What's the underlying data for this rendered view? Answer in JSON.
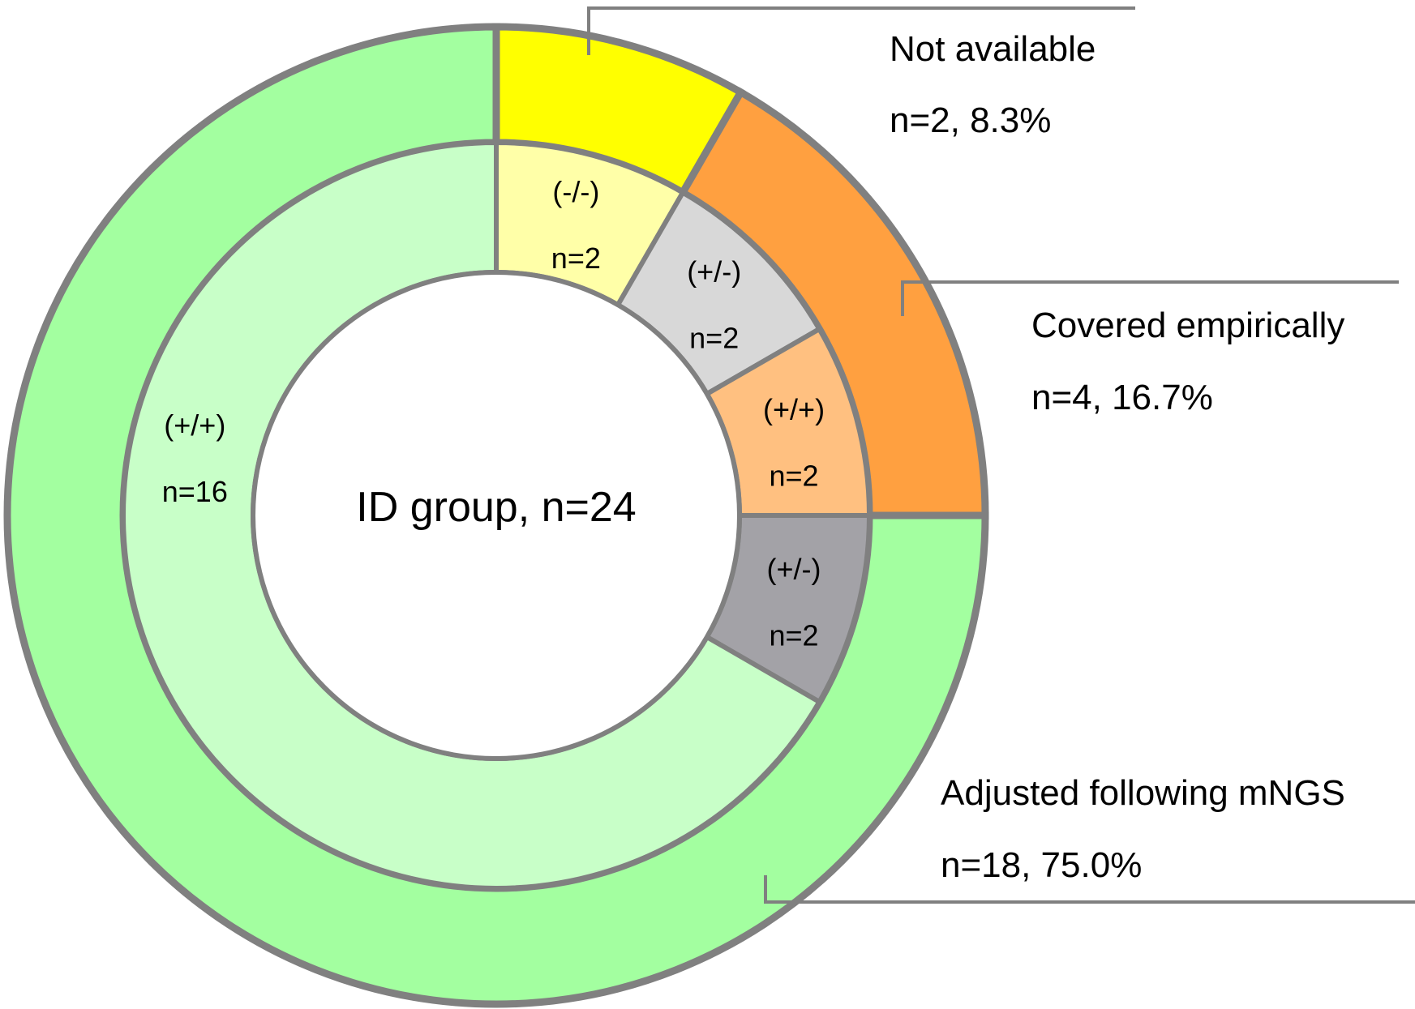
{
  "chart_data": {
    "type": "pie",
    "center_label": "ID group, n=24",
    "start": "top",
    "direction": "clockwise",
    "outer_ring": [
      {
        "category": "Not available",
        "n": 2,
        "percent": "8.3%",
        "display": "n=2, 8.3%",
        "color": "#FFFF00"
      },
      {
        "category": "Covered empirically",
        "n": 4,
        "percent": "16.7%",
        "display": "n=4, 16.7%",
        "color": "#FFA040"
      },
      {
        "category": "Adjusted following mNGS",
        "n": 18,
        "percent": "75.0%",
        "display": "n=18, 75.0%",
        "color": "#A3FFA0"
      }
    ],
    "inner_ring": [
      {
        "parent": "Not available",
        "label": "(-/-)",
        "n": 2,
        "n_label": "n=2",
        "color": "#FFFFA8"
      },
      {
        "parent": "Covered empirically",
        "label": "(+/-)",
        "n": 2,
        "n_label": "n=2",
        "color": "#D8D8D8"
      },
      {
        "parent": "Covered empirically",
        "label": "(+/+)",
        "n": 2,
        "n_label": "n=2",
        "color": "#FFC080"
      },
      {
        "parent": "Adjusted following mNGS",
        "label": "(+/-)",
        "n": 2,
        "n_label": "n=2",
        "color": "#A3A2A7"
      },
      {
        "parent": "Adjusted following mNGS",
        "label": "(+/+)",
        "n": 16,
        "n_label": "n=16",
        "color": "#C8FFC8"
      }
    ],
    "stroke_color": "#808080"
  }
}
